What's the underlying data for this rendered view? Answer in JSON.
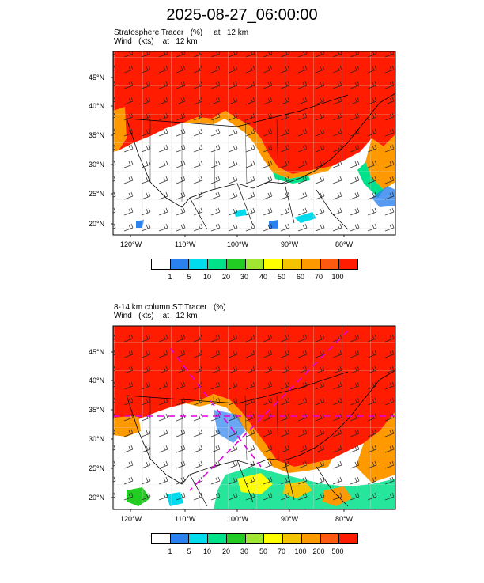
{
  "figure_title": "2025-08-27_06:00:00",
  "panels": [
    {
      "title_line1": "Stratosphere Tracer   (%)     at   12 km",
      "title_line2": "Wind   (kts)    at   12 km",
      "lat_labels": [
        "45°N",
        "40°N",
        "35°N",
        "30°N",
        "25°N",
        "20°N"
      ],
      "lon_labels": [
        "120°W",
        "110°W",
        "100°W",
        "90°W",
        "80°W"
      ],
      "colorbar": {
        "labels": [
          "1",
          "5",
          "10",
          "20",
          "30",
          "40",
          "50",
          "60",
          "70",
          "100"
        ],
        "colors": [
          "#ffffff",
          "#2a82f0",
          "#00dcee",
          "#00e28a",
          "#22cc22",
          "#a0e632",
          "#ffff00",
          "#f5c400",
          "#ff9900",
          "#ff5a0f",
          "#ff1c00"
        ]
      }
    },
    {
      "title_line1": "8-14 km column ST Tracer   (%)",
      "title_line2": "Wind   (kts)    at   12 km",
      "lat_labels": [
        "45°N",
        "40°N",
        "35°N",
        "30°N",
        "25°N",
        "20°N"
      ],
      "lon_labels": [
        "120°W",
        "110°W",
        "100°W",
        "90°W",
        "80°W"
      ],
      "colorbar": {
        "labels": [
          "1",
          "5",
          "10",
          "20",
          "30",
          "50",
          "70",
          "100",
          "200",
          "500"
        ],
        "colors": [
          "#ffffff",
          "#2a82f0",
          "#00dcee",
          "#00e28a",
          "#22cc22",
          "#a0e632",
          "#ffff00",
          "#f5c400",
          "#ff9900",
          "#ff5a0f",
          "#ff1c00"
        ]
      }
    }
  ]
}
